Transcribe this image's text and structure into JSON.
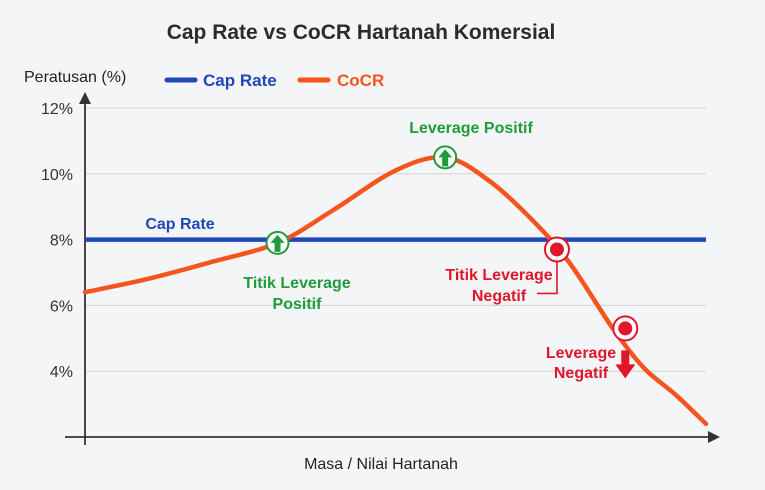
{
  "chart_data": {
    "type": "line",
    "title": "Cap Rate vs CoCR Hartanah Komersial",
    "xlabel": "Masa / Nilai Hartanah",
    "ylabel": "Peratusan (%)",
    "ylim": [
      2,
      12
    ],
    "yticks": [
      {
        "value": 4,
        "label": "4%"
      },
      {
        "value": 6,
        "label": "6%"
      },
      {
        "value": 8,
        "label": "8%"
      },
      {
        "value": 10,
        "label": "10%"
      },
      {
        "value": 12,
        "label": "12%"
      }
    ],
    "xlim": [
      0,
      100
    ],
    "grid": true,
    "legend_position": "top-left",
    "series": [
      {
        "name": "Cap Rate",
        "color": "#1f47b8",
        "x": [
          0,
          100
        ],
        "values": [
          8,
          8
        ]
      },
      {
        "name": "CoCR",
        "color": "#f5541c",
        "x": [
          0,
          10,
          20,
          31,
          40,
          50,
          58,
          65,
          72,
          78,
          85,
          90,
          95,
          100
        ],
        "values": [
          6.4,
          6.8,
          7.3,
          7.9,
          8.9,
          10.1,
          10.5,
          9.8,
          8.6,
          7.3,
          5.3,
          4.1,
          3.3,
          2.4
        ]
      }
    ],
    "cap_rate_label": "Cap Rate",
    "annotations": [
      {
        "id": "positive-leverage-point",
        "lines": [
          "Titik Leverage",
          "Positif"
        ],
        "x": 31,
        "y": 7.9,
        "color": "#1e9b3a",
        "marker": "up-arrow-circle"
      },
      {
        "id": "positive-leverage-peak",
        "lines": [
          "Leverage Positif"
        ],
        "x": 58,
        "y": 10.5,
        "color": "#1e9b3a",
        "marker": "up-arrow-circle"
      },
      {
        "id": "negative-leverage-point",
        "lines": [
          "Titik Leverage",
          "Negatif"
        ],
        "x": 76,
        "y": 7.7,
        "color": "#e0162b",
        "marker": "dot-circle"
      },
      {
        "id": "negative-leverage-low",
        "lines": [
          "Leverage",
          "Negatif"
        ],
        "x": 87,
        "y": 5.3,
        "color": "#e0162b",
        "marker": "dot-circle"
      }
    ]
  }
}
